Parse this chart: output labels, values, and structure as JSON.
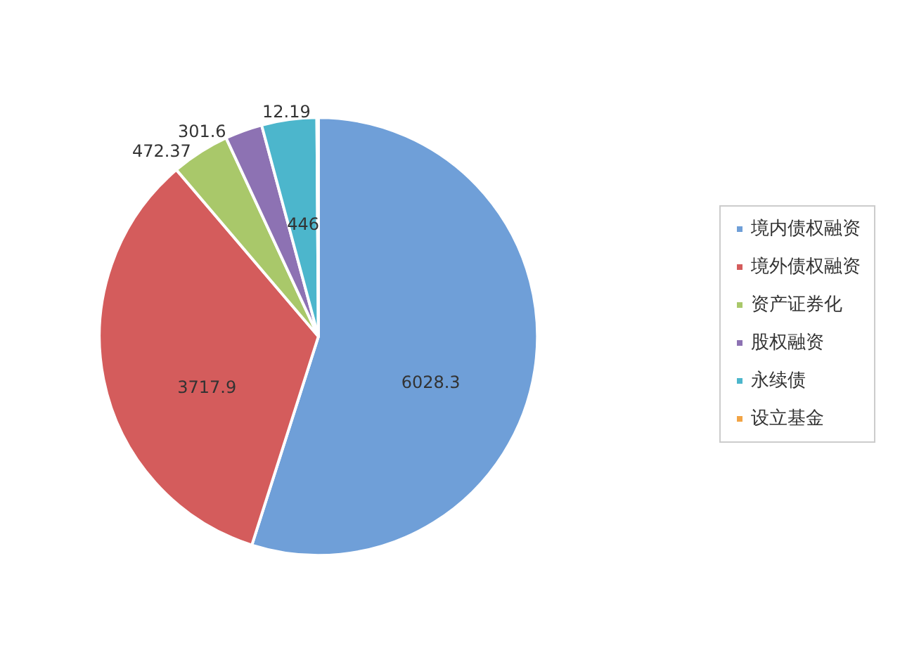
{
  "chart_data": {
    "type": "pie",
    "categories": [
      "境内债权融资",
      "境外债权融资",
      "资产证券化",
      "股权融资",
      "永续债",
      "设立基金"
    ],
    "values": [
      6028.3,
      3717.9,
      472.37,
      301.6,
      446,
      12.19
    ],
    "colors": [
      "#6f9fd8",
      "#d45c5c",
      "#a9c86a",
      "#8d72b3",
      "#4cb6cc",
      "#f2a445"
    ],
    "data_labels": true,
    "legend": "right"
  }
}
